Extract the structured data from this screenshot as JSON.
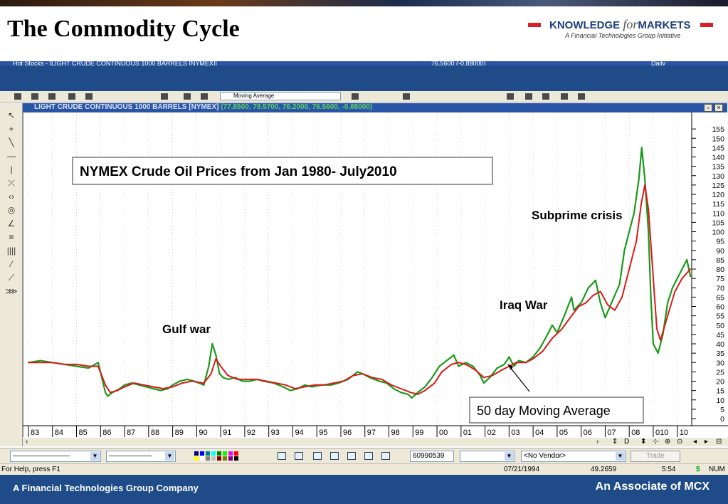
{
  "slide": {
    "title": "The Commodity Cycle",
    "brand_pre": "KNOWLEDGE ",
    "brand_for": "for",
    "brand_post": "MARKETS",
    "brand_tagline": "A Financial Technologies Group Initiative"
  },
  "window": {
    "title_fragment": "Hot Stocks - [LIGHT CRUDE CONTINUOUS 1000 BARRELS [NYMEX]]",
    "title_right_fragment": "76.5600 (-0.88000)",
    "title_daily": "Daily",
    "toolbar_study": "Moving Average"
  },
  "chart_caption": {
    "symbol": "LIGHT CRUDE CONTINUOUS 1000 BARRELS [NYMEX]",
    "ohlc": "(77.8500, 78.5700, 76.2000, 76.5600, -0.88000)"
  },
  "chart_data": {
    "type": "line",
    "title": "NYMEX Crude Oil Prices from Jan 1980- July2010",
    "x_tick_labels": [
      "83",
      "84",
      "85",
      "86",
      "87",
      "88",
      "89",
      "90",
      "91",
      "92",
      "93",
      "94",
      "95",
      "96",
      "97",
      "98",
      "99",
      "00",
      "01",
      "02",
      "03",
      "04",
      "05",
      "06",
      "07",
      "08",
      "010",
      "10"
    ],
    "y_tick_labels": [
      155,
      150,
      145,
      140,
      135,
      130,
      125,
      120,
      115,
      110,
      105,
      100,
      95,
      90,
      85,
      80,
      75,
      70,
      65,
      60,
      55,
      50,
      45,
      40,
      35,
      30,
      25,
      20,
      15,
      10,
      5,
      0
    ],
    "ylim": [
      0,
      160
    ],
    "grid": true,
    "annotations": {
      "gulf_war": "Gulf war",
      "iraq_war": "Iraq War",
      "subprime": "Subprime crisis",
      "moving_average": "50 day Moving Average"
    },
    "series": [
      {
        "color": "#1a9a1a",
        "x": [
          1983.0,
          1983.5,
          1984.0,
          1984.5,
          1985.0,
          1985.5,
          1985.9,
          1986.2,
          1986.3,
          1986.5,
          1986.8,
          1987.0,
          1987.3,
          1987.6,
          1987.9,
          1988.2,
          1988.5,
          1988.8,
          1989.0,
          1989.3,
          1989.6,
          1989.9,
          1990.3,
          1990.5,
          1990.65,
          1990.8,
          1990.95,
          1991.1,
          1991.3,
          1991.6,
          1991.9,
          1992.2,
          1992.5,
          1992.8,
          1993.2,
          1993.6,
          1993.9,
          1994.2,
          1994.5,
          1994.8,
          1995.2,
          1995.6,
          1995.9,
          1996.3,
          1996.7,
          1996.9,
          1997.2,
          1997.6,
          1997.9,
          1998.2,
          1998.5,
          1998.8,
          1998.95,
          1999.2,
          1999.5,
          1999.8,
          2000.1,
          2000.4,
          2000.7,
          2000.9,
          2001.2,
          2001.5,
          2001.8,
          2001.95,
          2002.2,
          2002.5,
          2002.8,
          2003.0,
          2003.2,
          2003.4,
          2003.7,
          2004.0,
          2004.3,
          2004.6,
          2004.8,
          2005.0,
          2005.3,
          2005.6,
          2005.7,
          2006.0,
          2006.3,
          2006.6,
          2006.8,
          2007.0,
          2007.3,
          2007.6,
          2007.8,
          2008.0,
          2008.2,
          2008.4,
          2008.52,
          2008.65,
          2008.8,
          2008.9,
          2009.0,
          2009.2,
          2009.4,
          2009.6,
          2009.8,
          2010.0,
          2010.2,
          2010.4,
          2010.55
        ],
        "values": [
          30,
          31,
          30,
          29,
          28,
          27,
          30,
          14,
          12,
          14,
          16,
          18,
          19,
          18,
          17,
          16,
          15,
          16,
          18,
          20,
          21,
          20,
          18,
          28,
          40,
          34,
          24,
          22,
          21,
          22,
          20,
          20,
          21,
          20,
          19,
          17,
          15,
          16,
          18,
          17,
          18,
          18,
          19,
          21,
          25,
          24,
          22,
          20,
          19,
          16,
          14,
          13,
          11,
          14,
          17,
          22,
          28,
          31,
          34,
          28,
          30,
          28,
          23,
          19,
          22,
          27,
          29,
          33,
          28,
          31,
          30,
          33,
          38,
          45,
          50,
          46,
          55,
          65,
          58,
          62,
          70,
          74,
          62,
          54,
          63,
          72,
          90,
          100,
          110,
          128,
          145,
          128,
          100,
          65,
          40,
          35,
          45,
          62,
          70,
          75,
          80,
          85,
          76
        ]
      },
      {
        "color": "#d81a1a",
        "x": [
          1983.0,
          1983.5,
          1984.0,
          1984.5,
          1985.0,
          1985.5,
          1985.9,
          1986.2,
          1986.4,
          1986.7,
          1987.0,
          1987.4,
          1987.8,
          1988.2,
          1988.6,
          1989.0,
          1989.4,
          1989.8,
          1990.3,
          1990.6,
          1990.8,
          1991.0,
          1991.3,
          1991.7,
          1992.1,
          1992.5,
          1992.9,
          1993.3,
          1993.7,
          1994.1,
          1994.5,
          1994.9,
          1995.3,
          1995.7,
          1996.1,
          1996.5,
          1996.9,
          1997.3,
          1997.7,
          1998.1,
          1998.5,
          1998.9,
          1999.2,
          1999.5,
          1999.9,
          2000.2,
          2000.6,
          2000.9,
          2001.2,
          2001.6,
          2001.95,
          2002.3,
          2002.7,
          2003.0,
          2003.3,
          2003.7,
          2004.0,
          2004.4,
          2004.8,
          2005.2,
          2005.6,
          2005.9,
          2006.2,
          2006.5,
          2006.8,
          2007.1,
          2007.4,
          2007.7,
          2008.0,
          2008.3,
          2008.5,
          2008.65,
          2008.8,
          2009.0,
          2009.15,
          2009.3,
          2009.6,
          2009.9,
          2010.2,
          2010.55
        ],
        "values": [
          30,
          30,
          30,
          29,
          29,
          28,
          28,
          18,
          14,
          15,
          17,
          19,
          18,
          17,
          16,
          17,
          19,
          20,
          19,
          24,
          32,
          28,
          23,
          21,
          21,
          21,
          20,
          19,
          18,
          16,
          17,
          18,
          18,
          19,
          20,
          23,
          24,
          22,
          21,
          18,
          16,
          14,
          13,
          15,
          19,
          25,
          29,
          30,
          29,
          26,
          22,
          23,
          26,
          28,
          30,
          30,
          32,
          36,
          43,
          48,
          55,
          60,
          62,
          66,
          68,
          61,
          58,
          65,
          80,
          95,
          115,
          125,
          112,
          75,
          48,
          42,
          55,
          68,
          75,
          80
        ]
      }
    ]
  },
  "left_tools": [
    "↖",
    "+",
    "╲",
    "—",
    "|",
    "⤫",
    "‹›",
    "◎",
    "∠",
    "≡",
    "||||",
    "⁄",
    "⟋",
    "⋙"
  ],
  "bottom_toolbar": {
    "symbol_code": "60990539",
    "vendor": "<No Vendor>",
    "trade": "Trade"
  },
  "status_bar": {
    "help": "For Help, press F1",
    "date": "07/21/1994",
    "value": "49.2659",
    "time": "5:54",
    "currency": "$",
    "num": "NUM"
  },
  "footer": {
    "left": "A Financial Technologies Group Company",
    "right": "An Associate of MCX"
  }
}
